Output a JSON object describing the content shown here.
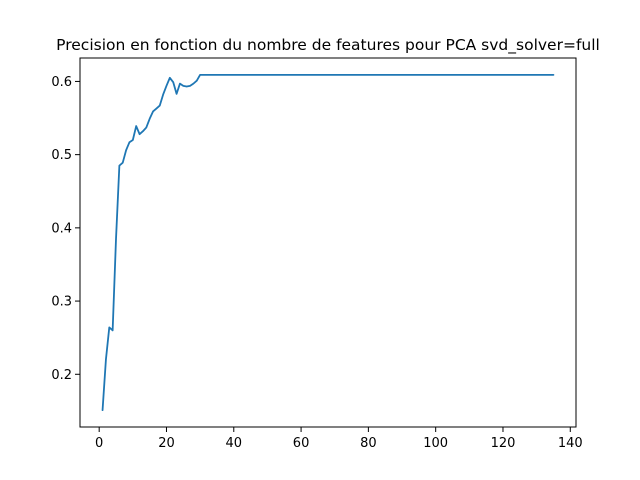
{
  "chart_data": {
    "type": "line",
    "title": "Precision en fonction du nombre de features pour PCA svd_solver=full",
    "xlabel": "",
    "ylabel": "",
    "xlim": [
      -5.7,
      141.7
    ],
    "ylim": [
      0.128,
      0.632
    ],
    "x_ticks": [
      0,
      20,
      40,
      60,
      80,
      100,
      120,
      140
    ],
    "x_tick_labels": [
      "0",
      "20",
      "40",
      "60",
      "80",
      "100",
      "120",
      "140"
    ],
    "y_ticks": [
      0.2,
      0.3,
      0.4,
      0.5,
      0.6
    ],
    "y_tick_labels": [
      "0.2",
      "0.3",
      "0.4",
      "0.5",
      "0.6"
    ],
    "grid": false,
    "legend": false,
    "series": [
      {
        "color": "#1f77b4",
        "x": [
          1,
          2,
          3,
          4,
          5,
          6,
          7,
          8,
          9,
          10,
          11,
          12,
          13,
          14,
          15,
          16,
          17,
          18,
          19,
          20,
          21,
          22,
          23,
          24,
          25,
          26,
          27,
          28,
          29,
          30,
          31,
          32,
          33,
          34,
          35,
          40,
          50,
          60,
          70,
          80,
          90,
          100,
          110,
          120,
          130,
          135
        ],
        "y": [
          0.151,
          0.22,
          0.264,
          0.26,
          0.385,
          0.485,
          0.489,
          0.506,
          0.517,
          0.52,
          0.539,
          0.528,
          0.532,
          0.537,
          0.549,
          0.559,
          0.563,
          0.567,
          0.582,
          0.594,
          0.605,
          0.599,
          0.583,
          0.597,
          0.594,
          0.593,
          0.594,
          0.597,
          0.601,
          0.609,
          0.609,
          0.609,
          0.609,
          0.609,
          0.609,
          0.609,
          0.609,
          0.609,
          0.609,
          0.609,
          0.609,
          0.609,
          0.609,
          0.609,
          0.609,
          0.609
        ]
      }
    ]
  }
}
